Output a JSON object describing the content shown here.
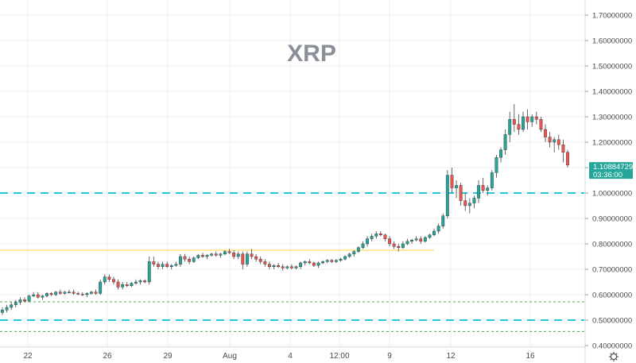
{
  "chart_data": {
    "type": "candlestick",
    "title": "XRP",
    "y_axis": {
      "position": "right",
      "range": [
        0.4,
        1.75
      ],
      "ticks": [
        "1.70000000",
        "1.60000000",
        "1.50000000",
        "1.40000000",
        "1.30000000",
        "1.20000000",
        "1.10000000",
        "1.00000000",
        "0.90000000",
        "0.80000000",
        "0.70000000",
        "0.60000000",
        "0.50000000",
        "0.40000000"
      ],
      "tick_values": [
        1.7,
        1.6,
        1.5,
        1.4,
        1.3,
        1.2,
        1.1,
        1.0,
        0.9,
        0.8,
        0.7,
        0.6,
        0.5,
        0.4
      ]
    },
    "x_axis": {
      "labels": [
        "22",
        "26",
        "29",
        "Aug",
        "4",
        "12:00",
        "9",
        "12",
        "16"
      ]
    },
    "grid": true,
    "last_price": {
      "value": "1.10884729",
      "countdown": "03:36:00",
      "color": "#26a69a"
    },
    "horizontal_lines": [
      {
        "price": 1.0,
        "style": "dashed",
        "color": "#26c6da"
      },
      {
        "price": 0.5,
        "style": "dashed",
        "color": "#26c6da"
      },
      {
        "price": 0.572,
        "style": "dotted",
        "color": "#4caf50"
      },
      {
        "price": 0.455,
        "style": "dotted",
        "color": "#4caf50"
      },
      {
        "price": 0.775,
        "style": "solid",
        "color": "#ffe082",
        "extent": "partial"
      }
    ],
    "colors": {
      "up": "#26a69a",
      "down": "#ef5350",
      "grid": "#eceff3"
    },
    "candles_ohlc": [
      [
        0.53,
        0.55,
        0.52,
        0.54
      ],
      [
        0.54,
        0.56,
        0.53,
        0.55
      ],
      [
        0.55,
        0.57,
        0.54,
        0.56
      ],
      [
        0.56,
        0.58,
        0.55,
        0.57
      ],
      [
        0.57,
        0.59,
        0.56,
        0.58
      ],
      [
        0.58,
        0.59,
        0.57,
        0.575
      ],
      [
        0.575,
        0.6,
        0.57,
        0.595
      ],
      [
        0.595,
        0.61,
        0.59,
        0.6
      ],
      [
        0.6,
        0.61,
        0.585,
        0.59
      ],
      [
        0.59,
        0.6,
        0.58,
        0.595
      ],
      [
        0.595,
        0.61,
        0.59,
        0.605
      ],
      [
        0.605,
        0.61,
        0.595,
        0.6
      ],
      [
        0.6,
        0.615,
        0.595,
        0.61
      ],
      [
        0.61,
        0.62,
        0.6,
        0.605
      ],
      [
        0.605,
        0.615,
        0.6,
        0.61
      ],
      [
        0.61,
        0.62,
        0.605,
        0.61
      ],
      [
        0.61,
        0.62,
        0.6,
        0.605
      ],
      [
        0.605,
        0.612,
        0.598,
        0.602
      ],
      [
        0.602,
        0.61,
        0.595,
        0.6
      ],
      [
        0.6,
        0.61,
        0.59,
        0.605
      ],
      [
        0.605,
        0.615,
        0.6,
        0.61
      ],
      [
        0.61,
        0.62,
        0.6,
        0.605
      ],
      [
        0.605,
        0.66,
        0.6,
        0.65
      ],
      [
        0.65,
        0.68,
        0.64,
        0.67
      ],
      [
        0.67,
        0.68,
        0.65,
        0.66
      ],
      [
        0.66,
        0.67,
        0.64,
        0.65
      ],
      [
        0.65,
        0.66,
        0.62,
        0.63
      ],
      [
        0.63,
        0.65,
        0.62,
        0.64
      ],
      [
        0.64,
        0.65,
        0.63,
        0.635
      ],
      [
        0.635,
        0.65,
        0.63,
        0.645
      ],
      [
        0.645,
        0.66,
        0.64,
        0.65
      ],
      [
        0.65,
        0.66,
        0.64,
        0.655
      ],
      [
        0.655,
        0.66,
        0.645,
        0.65
      ],
      [
        0.65,
        0.75,
        0.64,
        0.73
      ],
      [
        0.73,
        0.75,
        0.71,
        0.72
      ],
      [
        0.72,
        0.73,
        0.7,
        0.71
      ],
      [
        0.71,
        0.73,
        0.7,
        0.72
      ],
      [
        0.72,
        0.73,
        0.705,
        0.71
      ],
      [
        0.71,
        0.72,
        0.7,
        0.715
      ],
      [
        0.715,
        0.73,
        0.71,
        0.72
      ],
      [
        0.72,
        0.76,
        0.71,
        0.75
      ],
      [
        0.75,
        0.76,
        0.73,
        0.74
      ],
      [
        0.74,
        0.75,
        0.72,
        0.73
      ],
      [
        0.73,
        0.75,
        0.725,
        0.745
      ],
      [
        0.745,
        0.76,
        0.74,
        0.755
      ],
      [
        0.755,
        0.765,
        0.745,
        0.75
      ],
      [
        0.75,
        0.76,
        0.74,
        0.755
      ],
      [
        0.755,
        0.765,
        0.75,
        0.76
      ],
      [
        0.76,
        0.77,
        0.75,
        0.755
      ],
      [
        0.755,
        0.765,
        0.745,
        0.76
      ],
      [
        0.76,
        0.775,
        0.755,
        0.77
      ],
      [
        0.77,
        0.78,
        0.76,
        0.765
      ],
      [
        0.765,
        0.775,
        0.74,
        0.75
      ],
      [
        0.75,
        0.77,
        0.74,
        0.76
      ],
      [
        0.76,
        0.77,
        0.7,
        0.72
      ],
      [
        0.72,
        0.77,
        0.71,
        0.76
      ],
      [
        0.76,
        0.78,
        0.74,
        0.75
      ],
      [
        0.75,
        0.76,
        0.73,
        0.74
      ],
      [
        0.74,
        0.75,
        0.72,
        0.73
      ],
      [
        0.73,
        0.74,
        0.71,
        0.72
      ],
      [
        0.72,
        0.73,
        0.7,
        0.71
      ],
      [
        0.71,
        0.72,
        0.7,
        0.715
      ],
      [
        0.715,
        0.725,
        0.705,
        0.71
      ],
      [
        0.71,
        0.72,
        0.695,
        0.705
      ],
      [
        0.705,
        0.715,
        0.7,
        0.71
      ],
      [
        0.71,
        0.72,
        0.7,
        0.705
      ],
      [
        0.705,
        0.715,
        0.7,
        0.71
      ],
      [
        0.71,
        0.73,
        0.7,
        0.725
      ],
      [
        0.725,
        0.735,
        0.715,
        0.73
      ],
      [
        0.73,
        0.74,
        0.72,
        0.725
      ],
      [
        0.725,
        0.73,
        0.71,
        0.715
      ],
      [
        0.715,
        0.73,
        0.705,
        0.725
      ],
      [
        0.725,
        0.735,
        0.72,
        0.73
      ],
      [
        0.73,
        0.74,
        0.725,
        0.735
      ],
      [
        0.735,
        0.74,
        0.725,
        0.73
      ],
      [
        0.73,
        0.74,
        0.725,
        0.735
      ],
      [
        0.735,
        0.745,
        0.73,
        0.74
      ],
      [
        0.74,
        0.755,
        0.735,
        0.75
      ],
      [
        0.75,
        0.765,
        0.745,
        0.76
      ],
      [
        0.76,
        0.775,
        0.75,
        0.77
      ],
      [
        0.77,
        0.79,
        0.765,
        0.785
      ],
      [
        0.785,
        0.81,
        0.78,
        0.8
      ],
      [
        0.8,
        0.83,
        0.79,
        0.82
      ],
      [
        0.82,
        0.84,
        0.81,
        0.83
      ],
      [
        0.83,
        0.85,
        0.82,
        0.84
      ],
      [
        0.84,
        0.85,
        0.83,
        0.835
      ],
      [
        0.835,
        0.84,
        0.81,
        0.82
      ],
      [
        0.82,
        0.83,
        0.79,
        0.8
      ],
      [
        0.8,
        0.81,
        0.78,
        0.79
      ],
      [
        0.79,
        0.8,
        0.77,
        0.785
      ],
      [
        0.785,
        0.81,
        0.78,
        0.8
      ],
      [
        0.8,
        0.82,
        0.795,
        0.81
      ],
      [
        0.81,
        0.82,
        0.8,
        0.815
      ],
      [
        0.815,
        0.83,
        0.81,
        0.82
      ],
      [
        0.82,
        0.83,
        0.8,
        0.81
      ],
      [
        0.81,
        0.83,
        0.805,
        0.825
      ],
      [
        0.825,
        0.84,
        0.82,
        0.835
      ],
      [
        0.835,
        0.86,
        0.83,
        0.85
      ],
      [
        0.85,
        0.88,
        0.84,
        0.87
      ],
      [
        0.87,
        0.92,
        0.86,
        0.91
      ],
      [
        0.91,
        1.09,
        0.9,
        1.07
      ],
      [
        1.07,
        1.1,
        1.0,
        1.02
      ],
      [
        1.02,
        1.05,
        0.98,
        1.03
      ],
      [
        1.03,
        1.04,
        0.95,
        0.97
      ],
      [
        0.97,
        1.0,
        0.93,
        0.95
      ],
      [
        0.95,
        0.98,
        0.92,
        0.96
      ],
      [
        0.96,
        0.99,
        0.94,
        0.98
      ],
      [
        0.98,
        1.05,
        0.96,
        1.03
      ],
      [
        1.03,
        1.06,
        1.0,
        1.01
      ],
      [
        1.01,
        1.03,
        0.99,
        1.02
      ],
      [
        1.02,
        1.09,
        1.01,
        1.08
      ],
      [
        1.08,
        1.15,
        1.06,
        1.14
      ],
      [
        1.14,
        1.18,
        1.12,
        1.17
      ],
      [
        1.17,
        1.25,
        1.15,
        1.23
      ],
      [
        1.23,
        1.32,
        1.2,
        1.29
      ],
      [
        1.29,
        1.35,
        1.24,
        1.27
      ],
      [
        1.27,
        1.31,
        1.23,
        1.25
      ],
      [
        1.25,
        1.32,
        1.24,
        1.3
      ],
      [
        1.3,
        1.33,
        1.25,
        1.28
      ],
      [
        1.28,
        1.31,
        1.26,
        1.3
      ],
      [
        1.3,
        1.32,
        1.27,
        1.29
      ],
      [
        1.29,
        1.3,
        1.24,
        1.25
      ],
      [
        1.25,
        1.27,
        1.2,
        1.22
      ],
      [
        1.22,
        1.24,
        1.18,
        1.2
      ],
      [
        1.2,
        1.22,
        1.16,
        1.21
      ],
      [
        1.21,
        1.23,
        1.17,
        1.19
      ],
      [
        1.19,
        1.21,
        1.12,
        1.16
      ],
      [
        1.16,
        1.17,
        1.1,
        1.11
      ]
    ]
  }
}
